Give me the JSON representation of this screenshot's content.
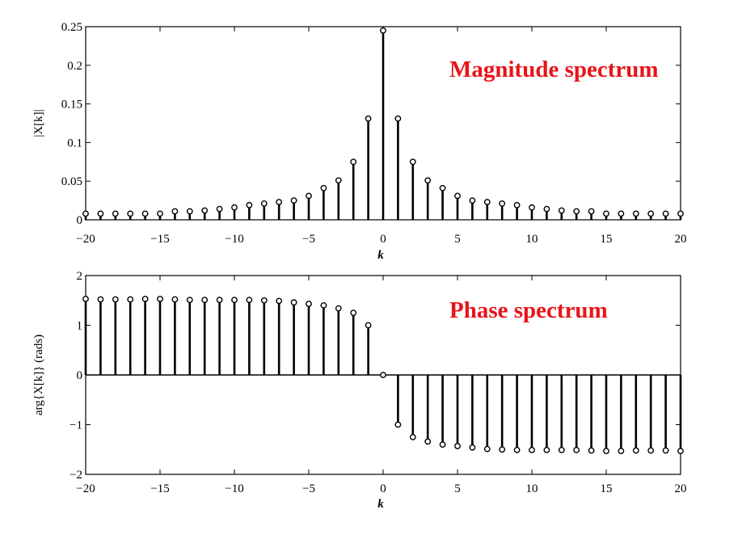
{
  "colors": {
    "annotation": "#e8141a",
    "stem": "#000000"
  },
  "chart_data": [
    {
      "type": "stem",
      "xlabel": "k",
      "ylabel": "|X[k]|",
      "xlim": [
        -20,
        20
      ],
      "ylim": [
        0,
        0.25
      ],
      "xticks": [
        -20,
        -15,
        -10,
        -5,
        0,
        5,
        10,
        15,
        20
      ],
      "xtick_labels": [
        "−20",
        "−15",
        "−10",
        "−5",
        "0",
        "5",
        "10",
        "15",
        "20"
      ],
      "yticks": [
        0,
        0.05,
        0.1,
        0.15,
        0.2,
        0.25
      ],
      "ytick_labels": [
        "0",
        "0.05",
        "0.1",
        "0.15",
        "0.2",
        "0.25"
      ],
      "annotation": "Magnitude spectrum",
      "x": [
        -20,
        -19,
        -18,
        -17,
        -16,
        -15,
        -14,
        -13,
        -12,
        -11,
        -10,
        -9,
        -8,
        -7,
        -6,
        -5,
        -4,
        -3,
        -2,
        -1,
        0,
        1,
        2,
        3,
        4,
        5,
        6,
        7,
        8,
        9,
        10,
        11,
        12,
        13,
        14,
        15,
        16,
        17,
        18,
        19,
        20
      ],
      "y": [
        0.008,
        0.008,
        0.008,
        0.008,
        0.008,
        0.008,
        0.011,
        0.011,
        0.012,
        0.014,
        0.016,
        0.019,
        0.021,
        0.023,
        0.025,
        0.031,
        0.041,
        0.051,
        0.075,
        0.131,
        0.245,
        0.131,
        0.075,
        0.051,
        0.041,
        0.031,
        0.025,
        0.023,
        0.021,
        0.019,
        0.016,
        0.014,
        0.012,
        0.011,
        0.011,
        0.008,
        0.008,
        0.008,
        0.008,
        0.008,
        0.008
      ]
    },
    {
      "type": "stem",
      "xlabel": "k",
      "ylabel": "arg{X[k]} (rads)",
      "xlim": [
        -20,
        20
      ],
      "ylim": [
        -2,
        2
      ],
      "xticks": [
        -20,
        -15,
        -10,
        -5,
        0,
        5,
        10,
        15,
        20
      ],
      "xtick_labels": [
        "−20",
        "−15",
        "−10",
        "−5",
        "0",
        "5",
        "10",
        "15",
        "20"
      ],
      "yticks": [
        -2,
        -1,
        0,
        1,
        2
      ],
      "ytick_labels": [
        "−2",
        "−1",
        "0",
        "1",
        "2"
      ],
      "annotation": "Phase spectrum",
      "x": [
        -20,
        -19,
        -18,
        -17,
        -16,
        -15,
        -14,
        -13,
        -12,
        -11,
        -10,
        -9,
        -8,
        -7,
        -6,
        -5,
        -4,
        -3,
        -2,
        -1,
        0,
        1,
        2,
        3,
        4,
        5,
        6,
        7,
        8,
        9,
        10,
        11,
        12,
        13,
        14,
        15,
        16,
        17,
        18,
        19,
        20
      ],
      "y": [
        1.53,
        1.52,
        1.52,
        1.52,
        1.53,
        1.53,
        1.52,
        1.51,
        1.51,
        1.51,
        1.51,
        1.51,
        1.5,
        1.49,
        1.46,
        1.43,
        1.4,
        1.34,
        1.25,
        1.0,
        0,
        -1.0,
        -1.25,
        -1.34,
        -1.4,
        -1.43,
        -1.46,
        -1.49,
        -1.5,
        -1.51,
        -1.51,
        -1.51,
        -1.51,
        -1.51,
        -1.52,
        -1.53,
        -1.53,
        -1.52,
        -1.52,
        -1.52,
        -1.53
      ]
    }
  ]
}
